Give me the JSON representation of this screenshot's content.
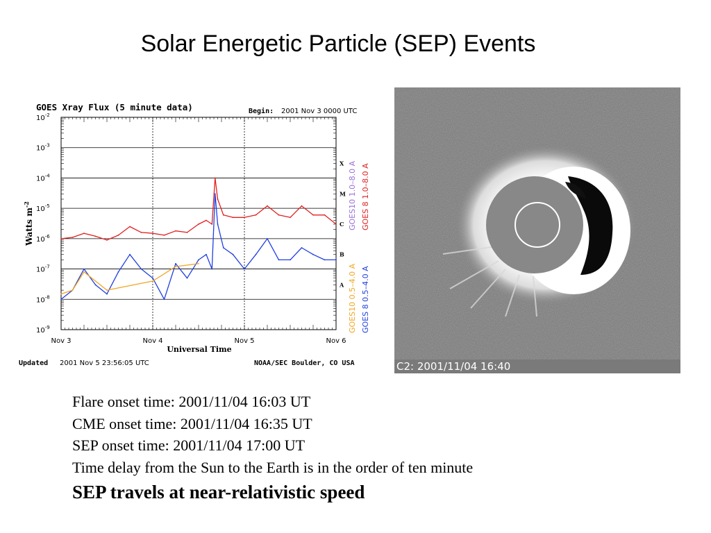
{
  "slide": {
    "title": "Solar Energetic Particle (SEP) Events"
  },
  "colors": {
    "goes8_long": "#e02020",
    "goes8_short": "#1f3fe0",
    "goes10_long": "#9a6fd8",
    "goes10_short": "#f2a520",
    "coronagraph_bg": "#7a7a7a",
    "occulter": "#888888"
  },
  "goes_plot": {
    "header": "GOES Xray Flux (5 minute data)",
    "begin_label": "Begin:",
    "begin_value": "2001 Nov 3 0000 UTC",
    "ylabel": "Watts m",
    "ylabel_exp": "-2",
    "xlabel": "Universal Time",
    "updated_label": "Updated",
    "updated_value": "2001 Nov  5 23:56:05 UTC",
    "credit": "NOAA/SEC Boulder, CO USA",
    "legend_goes10_long": "GOES10 1.0–8.0 A",
    "legend_goes8_long": "GOES 8 1.0–8.0 A",
    "legend_goes10_short": "GOES10 0.5–4.0 A",
    "legend_goes8_short": "GOES 8 0.5–4.0 A",
    "class_labels": [
      "X",
      "M",
      "C",
      "B",
      "A"
    ],
    "ytick_exponents": [
      "-2",
      "-3",
      "-4",
      "-5",
      "-6",
      "-7",
      "-8",
      "-9"
    ],
    "xtick_labels": [
      "Nov 3",
      "Nov 4",
      "Nov 5",
      "Nov 6"
    ]
  },
  "chart_data": {
    "type": "line",
    "title": "GOES Xray Flux (5 minute data)",
    "xlabel": "Universal Time",
    "ylabel": "Watts m-2",
    "yscale": "log",
    "ylim": [
      1e-09,
      0.01
    ],
    "xlim": [
      "2001-11-03T00:00",
      "2001-11-06T00:00"
    ],
    "grid": true,
    "series": [
      {
        "name": "GOES 8 1.0-8.0 A",
        "color": "#e02020",
        "x": [
          "2001-11-03T00:00",
          "2001-11-03T03:00",
          "2001-11-03T06:00",
          "2001-11-03T09:00",
          "2001-11-03T12:00",
          "2001-11-03T15:00",
          "2001-11-03T18:00",
          "2001-11-03T21:00",
          "2001-11-04T00:00",
          "2001-11-04T03:00",
          "2001-11-04T06:00",
          "2001-11-04T09:00",
          "2001-11-04T12:00",
          "2001-11-04T14:00",
          "2001-11-04T15:30",
          "2001-11-04T16:20",
          "2001-11-04T17:00",
          "2001-11-04T18:30",
          "2001-11-04T21:00",
          "2001-11-05T00:00",
          "2001-11-05T03:00",
          "2001-11-05T06:00",
          "2001-11-05T09:00",
          "2001-11-05T12:00",
          "2001-11-05T15:00",
          "2001-11-05T18:00",
          "2001-11-05T21:00",
          "2001-11-06T00:00"
        ],
        "y": [
          1e-06,
          1.1e-06,
          1.5e-06,
          1.2e-06,
          9e-07,
          1.3e-06,
          2.5e-06,
          1.6e-06,
          1.5e-06,
          1.3e-06,
          1.8e-06,
          1.6e-06,
          3e-06,
          4e-06,
          3e-06,
          0.0001,
          2e-05,
          6e-06,
          5e-06,
          5e-06,
          6e-06,
          1.2e-05,
          6e-06,
          5e-06,
          1.2e-05,
          6e-06,
          6e-06,
          3e-06
        ]
      },
      {
        "name": "GOES 8 0.5-4.0 A",
        "color": "#1f3fe0",
        "x": [
          "2001-11-03T00:00",
          "2001-11-03T03:00",
          "2001-11-03T06:00",
          "2001-11-03T09:00",
          "2001-11-03T12:00",
          "2001-11-03T15:00",
          "2001-11-03T18:00",
          "2001-11-03T21:00",
          "2001-11-04T00:00",
          "2001-11-04T03:00",
          "2001-11-04T06:00",
          "2001-11-04T09:00",
          "2001-11-04T12:00",
          "2001-11-04T14:00",
          "2001-11-04T15:30",
          "2001-11-04T16:20",
          "2001-11-04T17:00",
          "2001-11-04T18:30",
          "2001-11-04T21:00",
          "2001-11-05T00:00",
          "2001-11-05T03:00",
          "2001-11-05T06:00",
          "2001-11-05T09:00",
          "2001-11-05T12:00",
          "2001-11-05T15:00",
          "2001-11-05T18:00",
          "2001-11-05T21:00",
          "2001-11-06T00:00"
        ],
        "y": [
          1e-08,
          2e-08,
          1e-07,
          3e-08,
          1.5e-08,
          8e-08,
          3e-07,
          1e-07,
          5e-08,
          1e-08,
          1.5e-07,
          5e-08,
          2e-07,
          3e-07,
          1e-07,
          3e-05,
          3e-06,
          5e-07,
          3e-07,
          1e-07,
          3e-07,
          1e-06,
          2e-07,
          2e-07,
          5e-07,
          3e-07,
          2e-07,
          2e-07
        ]
      },
      {
        "name": "GOES10 1.0-8.0 A",
        "color": "#9a6fd8",
        "x": [],
        "y": []
      },
      {
        "name": "GOES10 0.5-4.0 A",
        "color": "#f2a520",
        "x": [
          "2001-11-03T00:00",
          "2001-11-03T03:00",
          "2001-11-03T06:00",
          "2001-11-03T12:00",
          "2001-11-04T00:00",
          "2001-11-04T06:00",
          "2001-11-04T12:00"
        ],
        "y": [
          1.5e-08,
          2e-08,
          8e-08,
          2e-08,
          4e-08,
          1.2e-07,
          1.5e-07
        ]
      }
    ]
  },
  "coronagraph": {
    "caption": "C2: 2001/11/04 16:40"
  },
  "notes": {
    "line1": "Flare onset time:  2001/11/04 16:03 UT",
    "line2": "CME onset time: 2001/11/04 16:35 UT",
    "line3": "SEP onset time:   2001/11/04 17:00 UT",
    "line4": "Time delay from the Sun to the Earth is in the order of ten minute",
    "line5": "SEP travels at near-relativistic speed"
  }
}
